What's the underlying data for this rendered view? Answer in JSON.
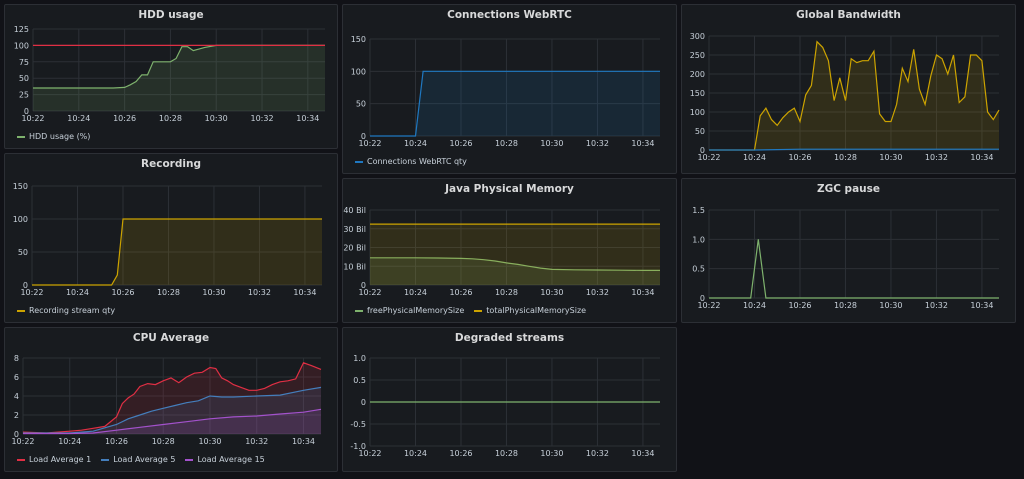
{
  "panels": [
    {
      "title": "HDD usage",
      "legend": [
        "HDD usage (%)"
      ]
    },
    {
      "title": "Connections WebRTC",
      "legend": [
        "Connections WebRTC qty"
      ]
    },
    {
      "title": "Global Bandwidth",
      "legend": []
    },
    {
      "title": "Recording",
      "legend": [
        "Recording stream qty"
      ]
    },
    {
      "title": "Java Physical Memory",
      "legend": [
        "freePhysicalMemorySize",
        "totalPhysicalMemorySize"
      ]
    },
    {
      "title": "ZGC pause",
      "legend": []
    },
    {
      "title": "CPU Average",
      "legend": [
        "Load  Average 1",
        "Load  Average 5",
        "Load  Average 15"
      ]
    },
    {
      "title": "Degraded streams",
      "legend": []
    }
  ],
  "chart_data": [
    {
      "type": "area",
      "title": "HDD usage",
      "x_ticks": [
        "10:22",
        "10:24",
        "10:26",
        "10:28",
        "10:30",
        "10:32",
        "10:34"
      ],
      "y_ticks": [
        "0",
        "25",
        "50",
        "75",
        "100",
        "125"
      ],
      "ylim": [
        0,
        125
      ],
      "series": [
        {
          "name": "HDD usage (%)",
          "color": "#7eb26d",
          "x": [
            "10:22",
            "10:24",
            "10:25",
            "10:25:30",
            "10:26",
            "10:26:15",
            "10:26:30",
            "10:26:45",
            "10:27",
            "10:27:15",
            "10:27:40",
            "10:28",
            "10:28:15",
            "10:28:30",
            "10:28:45",
            "10:29",
            "10:29:30",
            "10:30",
            "10:31",
            "10:32",
            "10:33",
            "10:34",
            "10:34:45"
          ],
          "values": [
            35,
            35,
            35,
            35,
            36,
            40,
            45,
            55,
            55,
            75,
            75,
            75,
            80,
            98,
            98,
            92,
            97,
            100,
            100,
            100,
            100,
            100,
            100
          ]
        }
      ],
      "threshold": {
        "value": 100,
        "color": "#e02f44"
      }
    },
    {
      "type": "area",
      "title": "Connections WebRTC",
      "x_ticks": [
        "10:22",
        "10:24",
        "10:26",
        "10:28",
        "10:30",
        "10:32",
        "10:34"
      ],
      "y_ticks": [
        "0",
        "50",
        "100",
        "150"
      ],
      "ylim": [
        0,
        150
      ],
      "series": [
        {
          "name": "Connections WebRTC qty",
          "color": "#1f78c1",
          "x": [
            "10:22",
            "10:24",
            "10:24:20",
            "10:25",
            "10:34:45"
          ],
          "values": [
            0,
            0,
            100,
            100,
            100
          ]
        }
      ]
    },
    {
      "type": "area",
      "title": "Global Bandwidth",
      "x_ticks": [
        "10:22",
        "10:24",
        "10:26",
        "10:28",
        "10:30",
        "10:32",
        "10:34"
      ],
      "y_ticks": [
        "0",
        "50",
        "100",
        "150",
        "200",
        "250",
        "300"
      ],
      "ylim": [
        0,
        300
      ],
      "series": [
        {
          "name": "",
          "color": "#cca300",
          "x": [
            "10:22",
            "10:24",
            "10:24:15",
            "10:24:30",
            "10:24:45",
            "10:25",
            "10:25:15",
            "10:25:30",
            "10:25:45",
            "10:26",
            "10:26:15",
            "10:26:30",
            "10:26:45",
            "10:27",
            "10:27:15",
            "10:27:30",
            "10:27:45",
            "10:28",
            "10:28:15",
            "10:28:30",
            "10:28:45",
            "10:29",
            "10:29:15",
            "10:29:30",
            "10:29:45",
            "10:30",
            "10:30:15",
            "10:30:30",
            "10:30:45",
            "10:31",
            "10:31:15",
            "10:31:30",
            "10:31:45",
            "10:32",
            "10:32:15",
            "10:32:30",
            "10:32:45",
            "10:33",
            "10:33:15",
            "10:33:30",
            "10:33:45",
            "10:34",
            "10:34:15",
            "10:34:30",
            "10:34:45"
          ],
          "values": [
            0,
            0,
            90,
            110,
            80,
            65,
            85,
            100,
            110,
            75,
            145,
            170,
            285,
            270,
            235,
            130,
            190,
            130,
            240,
            230,
            235,
            235,
            260,
            95,
            75,
            75,
            120,
            215,
            180,
            265,
            160,
            120,
            195,
            250,
            240,
            200,
            250,
            125,
            140,
            250,
            250,
            235,
            100,
            80,
            105
          ]
        },
        {
          "name": "",
          "color": "#1f78c1",
          "x": [
            "10:22",
            "10:24",
            "10:26",
            "10:28",
            "10:30",
            "10:32",
            "10:34",
            "10:34:45"
          ],
          "values": [
            0,
            0,
            2,
            2,
            2,
            2,
            2,
            2
          ]
        }
      ]
    },
    {
      "type": "area",
      "title": "Recording",
      "x_ticks": [
        "10:22",
        "10:24",
        "10:26",
        "10:28",
        "10:30",
        "10:32",
        "10:34"
      ],
      "y_ticks": [
        "0",
        "50",
        "100",
        "150"
      ],
      "ylim": [
        0,
        150
      ],
      "series": [
        {
          "name": "Recording stream qty",
          "color": "#cca300",
          "x": [
            "10:22",
            "10:24",
            "10:25:30",
            "10:25:45",
            "10:26",
            "10:27",
            "10:34:45"
          ],
          "values": [
            0,
            0,
            0,
            15,
            100,
            100,
            100
          ]
        }
      ]
    },
    {
      "type": "area",
      "title": "Java Physical Memory",
      "x_ticks": [
        "10:22",
        "10:24",
        "10:26",
        "10:28",
        "10:30",
        "10:32",
        "10:34"
      ],
      "y_ticks": [
        "0",
        "10 Bil",
        "20 Bil",
        "30 Bil",
        "40 Bil"
      ],
      "ylim": [
        0,
        40
      ],
      "series": [
        {
          "name": "freePhysicalMemorySize",
          "color": "#7eb26d",
          "x": [
            "10:22",
            "10:24",
            "10:25",
            "10:26",
            "10:26:30",
            "10:27",
            "10:27:30",
            "10:28",
            "10:28:30",
            "10:29",
            "10:29:30",
            "10:30",
            "10:31",
            "10:32",
            "10:33",
            "10:34",
            "10:34:45"
          ],
          "values": [
            14.5,
            14.5,
            14.4,
            14.2,
            14,
            13.5,
            12.8,
            11.8,
            11,
            10,
            9,
            8.3,
            8.1,
            8,
            7.9,
            7.8,
            7.8
          ]
        },
        {
          "name": "totalPhysicalMemorySize",
          "color": "#cca300",
          "x": [
            "10:22",
            "10:34:45"
          ],
          "values": [
            32.5,
            32.5
          ]
        }
      ]
    },
    {
      "type": "line",
      "title": "ZGC pause",
      "x_ticks": [
        "10:22",
        "10:24",
        "10:26",
        "10:28",
        "10:30",
        "10:32",
        "10:34"
      ],
      "y_ticks": [
        "0",
        "0.5",
        "1.0",
        "1.5"
      ],
      "ylim": [
        0,
        1.5
      ],
      "series": [
        {
          "name": "",
          "color": "#7eb26d",
          "x": [
            "10:22",
            "10:23:50",
            "10:24:10",
            "10:24:30",
            "10:34:45"
          ],
          "values": [
            0,
            0,
            1,
            0,
            0
          ]
        }
      ]
    },
    {
      "type": "area",
      "title": "CPU Average",
      "x_ticks": [
        "10:22",
        "10:24",
        "10:26",
        "10:28",
        "10:30",
        "10:32",
        "10:34"
      ],
      "y_ticks": [
        "0",
        "2",
        "4",
        "6",
        "8"
      ],
      "ylim": [
        0,
        8
      ],
      "series": [
        {
          "name": "Load  Average 1",
          "color": "#e02f44",
          "x": [
            "10:22",
            "10:23",
            "10:24",
            "10:24:30",
            "10:25",
            "10:25:30",
            "10:26",
            "10:26:15",
            "10:26:30",
            "10:26:45",
            "10:27",
            "10:27:20",
            "10:27:40",
            "10:28",
            "10:28:20",
            "10:28:40",
            "10:29",
            "10:29:20",
            "10:29:40",
            "10:30",
            "10:30:15",
            "10:30:30",
            "10:30:45",
            "10:31",
            "10:31:20",
            "10:31:40",
            "10:32",
            "10:32:20",
            "10:32:40",
            "10:33",
            "10:33:20",
            "10:33:40",
            "10:34",
            "10:34:20",
            "10:34:45"
          ],
          "values": [
            0.2,
            0.1,
            0.3,
            0.4,
            0.6,
            0.8,
            1.8,
            3.2,
            3.8,
            4.2,
            5,
            5.3,
            5.2,
            5.6,
            5.9,
            5.4,
            6,
            6.4,
            6.5,
            7,
            6.9,
            5.9,
            5.6,
            5.2,
            4.9,
            4.6,
            4.6,
            4.8,
            5.2,
            5.5,
            5.6,
            5.8,
            7.5,
            7.2,
            6.8
          ]
        },
        {
          "name": "Load  Average 5",
          "color": "#447ebc",
          "x": [
            "10:22",
            "10:24",
            "10:25",
            "10:26",
            "10:26:30",
            "10:27",
            "10:27:30",
            "10:28",
            "10:28:30",
            "10:29",
            "10:29:30",
            "10:30",
            "10:30:30",
            "10:31",
            "10:32",
            "10:33",
            "10:34",
            "10:34:45"
          ],
          "values": [
            0.1,
            0.1,
            0.3,
            1,
            1.6,
            2,
            2.4,
            2.7,
            3,
            3.3,
            3.5,
            4,
            3.9,
            3.9,
            4,
            4.1,
            4.6,
            4.9
          ]
        },
        {
          "name": "Load  Average 15",
          "color": "#a352cc",
          "x": [
            "10:22",
            "10:24",
            "10:25",
            "10:26",
            "10:27",
            "10:28",
            "10:29",
            "10:30",
            "10:31",
            "10:32",
            "10:33",
            "10:34",
            "10:34:45"
          ],
          "values": [
            0.05,
            0.05,
            0.1,
            0.4,
            0.7,
            1,
            1.3,
            1.6,
            1.8,
            1.9,
            2.1,
            2.3,
            2.6
          ]
        }
      ]
    },
    {
      "type": "line",
      "title": "Degraded streams",
      "x_ticks": [
        "10:22",
        "10:24",
        "10:26",
        "10:28",
        "10:30",
        "10:32",
        "10:34"
      ],
      "y_ticks": [
        "-1.0",
        "-0.5",
        "0",
        "0.5",
        "1.0"
      ],
      "ylim": [
        -1,
        1
      ],
      "series": [
        {
          "name": "",
          "color": "#7eb26d",
          "x": [
            "10:22",
            "10:34:45"
          ],
          "values": [
            0,
            0
          ]
        }
      ]
    }
  ]
}
